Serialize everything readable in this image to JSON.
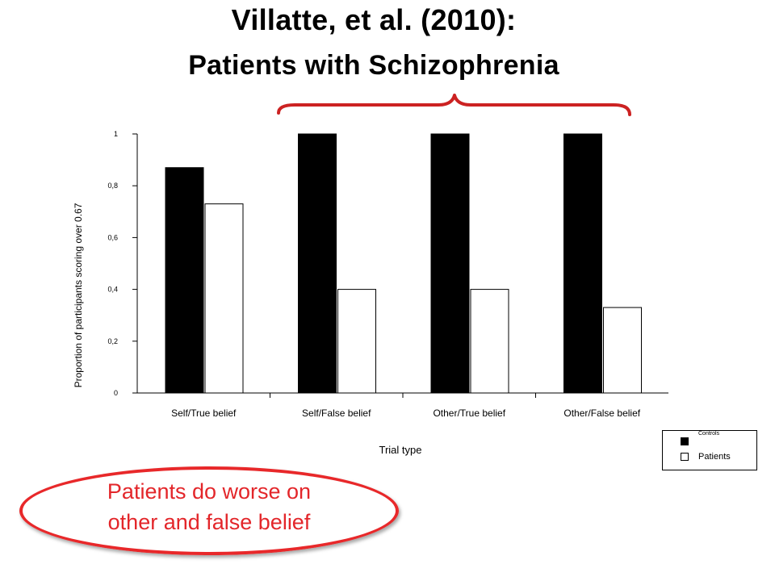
{
  "slide": {
    "title_line1": "Villatte, et al. (2010):",
    "title_line2": "Patients with Schizophrenia",
    "callout_line1": "Patients do worse on",
    "callout_line2": "other and false belief",
    "accent_color": "#e3262a"
  },
  "chart_data": {
    "type": "bar",
    "title": "",
    "xlabel": "Trial type",
    "ylabel": "Proportion of participants scoring over 0.67",
    "categories": [
      "Self/True belief",
      "Self/False belief",
      "Other/True belief",
      "Other/False belief"
    ],
    "series": [
      {
        "name": "Controls",
        "color": "#000000",
        "values": [
          0.87,
          1.0,
          1.0,
          1.0
        ]
      },
      {
        "name": "Patients",
        "color": "#ffffff",
        "values": [
          0.73,
          0.4,
          0.4,
          0.33
        ]
      }
    ],
    "ylim": [
      0,
      1
    ],
    "yticks": [
      "0",
      "0,2",
      "0,4",
      "0,6",
      "0,8",
      "1"
    ],
    "ytick_values": [
      0,
      0.2,
      0.4,
      0.6,
      0.8,
      1
    ],
    "grid": false,
    "legend_position": "bottom-right"
  }
}
